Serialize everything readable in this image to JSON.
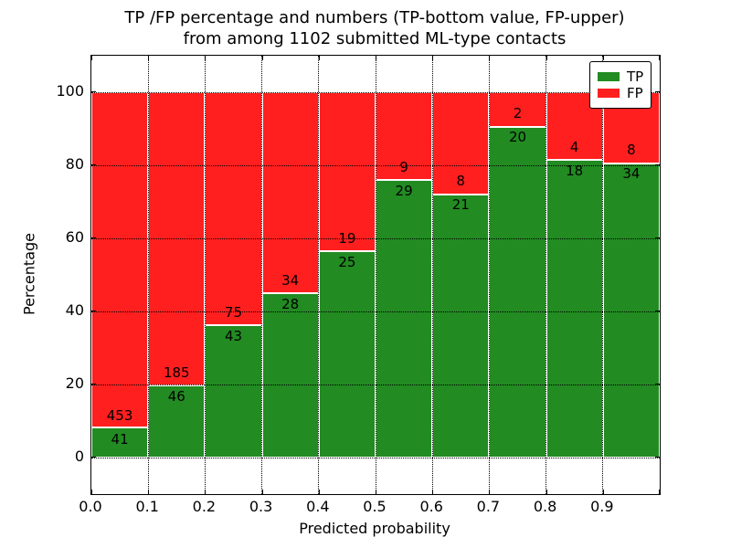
{
  "title": {
    "line1": "TP /FP percentage and numbers (TP-bottom value, FP-upper)",
    "line2": "from among 1102 submitted ML-type contacts"
  },
  "axes": {
    "xlabel": "Predicted probability",
    "ylabel": "Percentage",
    "x_tick_labels": [
      "0.0",
      "0.1",
      "0.2",
      "0.3",
      "0.4",
      "0.5",
      "0.6",
      "0.7",
      "0.8",
      "0.9"
    ],
    "y_tick_labels": [
      "0",
      "20",
      "40",
      "60",
      "80",
      "100"
    ],
    "y_ticks": [
      0,
      20,
      40,
      60,
      80,
      100
    ],
    "xlim": [
      0.0,
      1.0
    ],
    "ylim": [
      -10,
      110
    ],
    "grid": "dotted"
  },
  "legend": {
    "position": "upper right",
    "entries": [
      {
        "label": "TP",
        "color": "#228B22"
      },
      {
        "label": "FP",
        "color": "#FF1F1F"
      }
    ]
  },
  "chart_data": {
    "type": "bar",
    "stacked": true,
    "normalized_to_percent": true,
    "title": "TP /FP percentage and numbers (TP-bottom value, FP-upper) from among 1102 submitted ML-type contacts",
    "xlabel": "Predicted probability",
    "ylabel": "Percentage",
    "xlim": [
      0.0,
      1.0
    ],
    "ylim": [
      -10,
      110
    ],
    "bin_edges": [
      0.0,
      0.1,
      0.2,
      0.3,
      0.4,
      0.5,
      0.6,
      0.7,
      0.8,
      0.9,
      1.0
    ],
    "categories": [
      "0.0-0.1",
      "0.1-0.2",
      "0.2-0.3",
      "0.3-0.4",
      "0.4-0.5",
      "0.5-0.6",
      "0.6-0.7",
      "0.7-0.8",
      "0.8-0.9",
      "0.9-1.0"
    ],
    "series": [
      {
        "name": "TP",
        "color": "#228B22",
        "counts": [
          41,
          46,
          43,
          28,
          25,
          29,
          21,
          20,
          18,
          34
        ],
        "percent": [
          8.3,
          19.9,
          36.4,
          45.2,
          56.8,
          76.3,
          72.4,
          90.9,
          81.8,
          81.0
        ]
      },
      {
        "name": "FP",
        "color": "#FF1F1F",
        "counts": [
          453,
          185,
          75,
          34,
          19,
          9,
          8,
          2,
          4,
          8
        ],
        "percent": [
          91.7,
          80.1,
          63.6,
          54.8,
          43.2,
          23.7,
          27.6,
          9.1,
          18.2,
          19.0
        ]
      }
    ],
    "total_contacts": 1102
  }
}
